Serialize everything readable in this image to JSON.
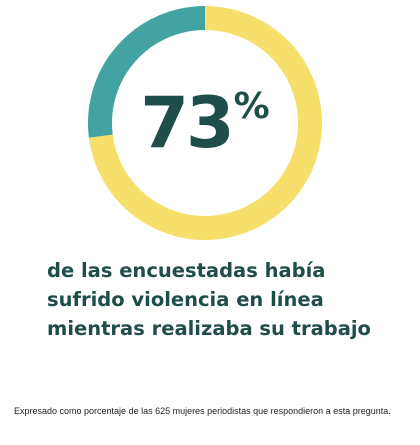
{
  "chart_data": {
    "type": "pie",
    "style": "donut",
    "slices": [
      {
        "label": "",
        "value": 73,
        "color": "#f6e06b"
      },
      {
        "label": "",
        "value": 27,
        "color": "#43a3a3"
      }
    ],
    "center_value": "73",
    "center_unit": "%",
    "headline_lines": [
      "de las encuestadas había",
      "sufrido violencia en línea",
      "mientras realizaba su trabajo"
    ],
    "footnote": "Expresado como porcentaje de las 625 mujeres periodistas que respondieron a esta pregunta."
  },
  "colors": {
    "primary_text": "#1f4e4a",
    "highlight_slice": "#f6e06b",
    "remainder_slice": "#43a3a3"
  }
}
